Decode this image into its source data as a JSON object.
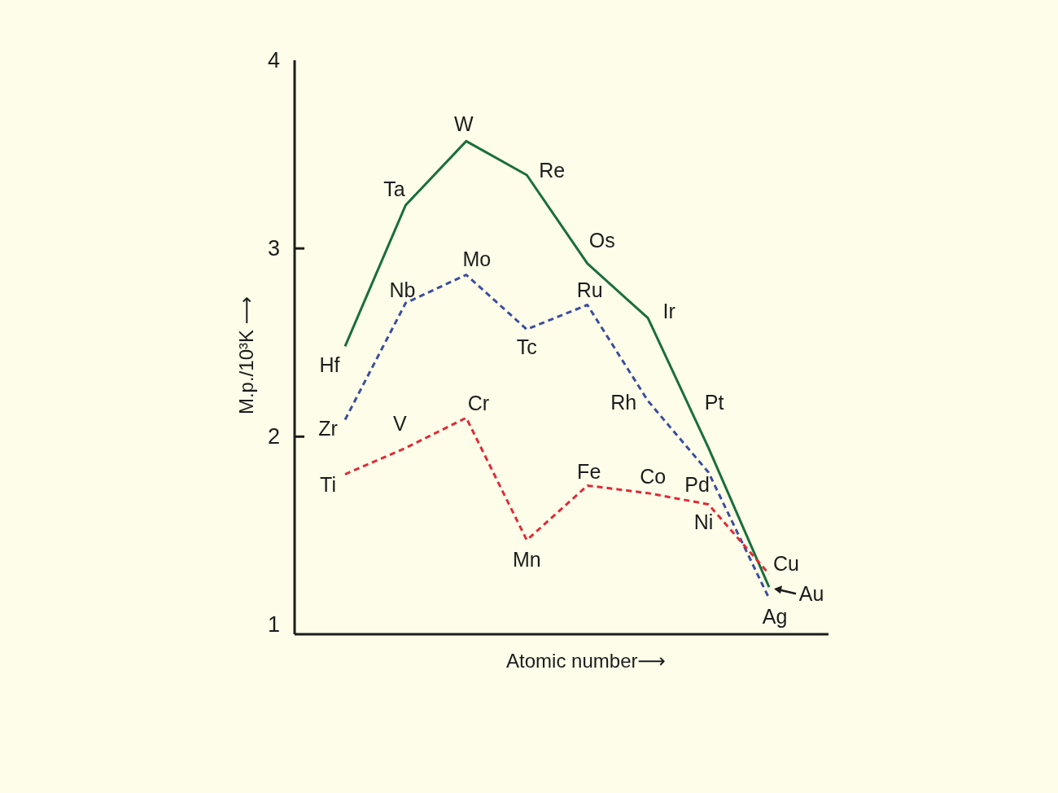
{
  "chart_data": {
    "type": "line",
    "xlabel": "Atomic number⟶",
    "ylabel": "M.p./10³K ⟶",
    "categories": [
      null,
      null,
      null,
      null,
      null,
      null,
      null,
      null
    ],
    "ylim": [
      0.95,
      4
    ],
    "yticks": [
      1,
      2,
      3,
      4
    ],
    "marker": "none",
    "series": [
      {
        "color": "#1a6e3c",
        "line_style": "solid",
        "values": [
          2.48,
          3.23,
          3.57,
          3.39,
          2.92,
          2.63,
          1.94,
          1.2
        ],
        "value_labels": [
          "Hf",
          "Ta",
          "W",
          "Re",
          "Os",
          "Ir",
          "Pt",
          "Au"
        ]
      },
      {
        "color": "#3b4da0",
        "line_style": "dashed",
        "values": [
          2.09,
          2.71,
          2.86,
          2.57,
          2.7,
          2.19,
          1.81,
          1.14
        ],
        "value_labels": [
          "Zr",
          "Nb",
          "Mo",
          "Tc",
          "Ru",
          "Rh",
          "Pd",
          "Ag"
        ]
      },
      {
        "color": "#e02a36",
        "line_style": "dashed",
        "values": [
          1.8,
          1.94,
          2.1,
          1.45,
          1.74,
          1.7,
          1.64,
          1.27
        ],
        "value_labels": [
          "Ti",
          "V",
          "Cr",
          "Mn",
          "Fe",
          "Co",
          "Ni",
          "Cu"
        ]
      }
    ]
  }
}
